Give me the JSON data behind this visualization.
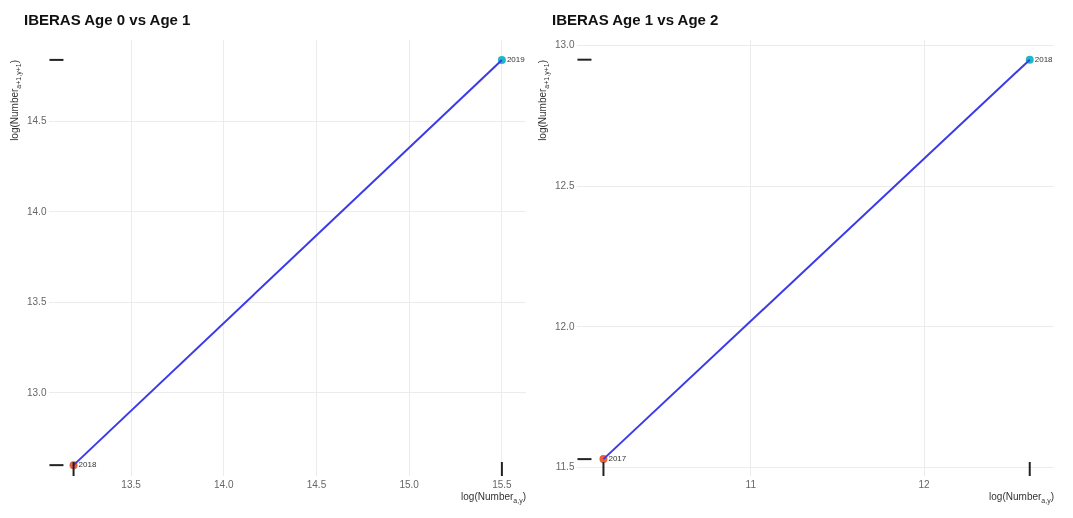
{
  "chart_data": [
    {
      "type": "scatter",
      "title": "IBERAS Age 0 vs Age 1",
      "xlabel": "log(Number$_{a,y}$)",
      "ylabel": "log(Number$_{a+1,y+1}$)",
      "xlim": [
        13.06,
        15.63
      ],
      "ylim": [
        12.54,
        14.95
      ],
      "xticks": [
        13.5,
        {
          "value": 14,
          "label": "14.0"
        },
        14.5,
        {
          "value": 15,
          "label": "15.0"
        },
        15.5
      ],
      "yticks": [
        {
          "value": 13,
          "label": "13.0"
        },
        13.5,
        {
          "value": 14,
          "label": "14.0"
        },
        14.5
      ],
      "grid": true,
      "legend": false,
      "annotations": [
        {
          "text": "2018",
          "x": 13.19,
          "y": 12.6
        },
        {
          "text": "2019",
          "x": 15.5,
          "y": 14.84
        }
      ],
      "series": [
        {
          "type": "line",
          "color": "#3a3ae8",
          "x": [
            13.19,
            15.5
          ],
          "values": [
            12.6,
            14.84
          ]
        },
        {
          "colors": [
            "#e8603c",
            "#1fb8c9"
          ],
          "x": [
            13.19,
            15.5
          ],
          "values": [
            12.6,
            14.84
          ]
        }
      ]
    },
    {
      "type": "scatter",
      "title": "IBERAS Age 1 vs Age 2",
      "xlabel": "log(Number$_{a,y}$)",
      "ylabel": "log(Number$_{a+1,y+1}$)",
      "xlim": [
        10.0,
        12.75
      ],
      "ylim": [
        11.47,
        13.02
      ],
      "xticks": [
        11,
        12
      ],
      "yticks": [
        11.5,
        {
          "value": 12,
          "label": "12.0"
        },
        12.5,
        {
          "value": 13,
          "label": "13.0"
        }
      ],
      "grid": true,
      "legend": false,
      "annotations": [
        {
          "text": "2017",
          "x": 10.15,
          "y": 11.53
        },
        {
          "text": "2018",
          "x": 12.61,
          "y": 12.95
        }
      ],
      "series": [
        {
          "type": "line",
          "color": "#3a3ae8",
          "x": [
            10.15,
            12.61
          ],
          "values": [
            11.53,
            12.95
          ]
        },
        {
          "colors": [
            "#e8603c",
            "#1fb8c9"
          ],
          "x": [
            10.15,
            12.61
          ],
          "values": [
            11.53,
            12.95
          ]
        }
      ]
    }
  ]
}
